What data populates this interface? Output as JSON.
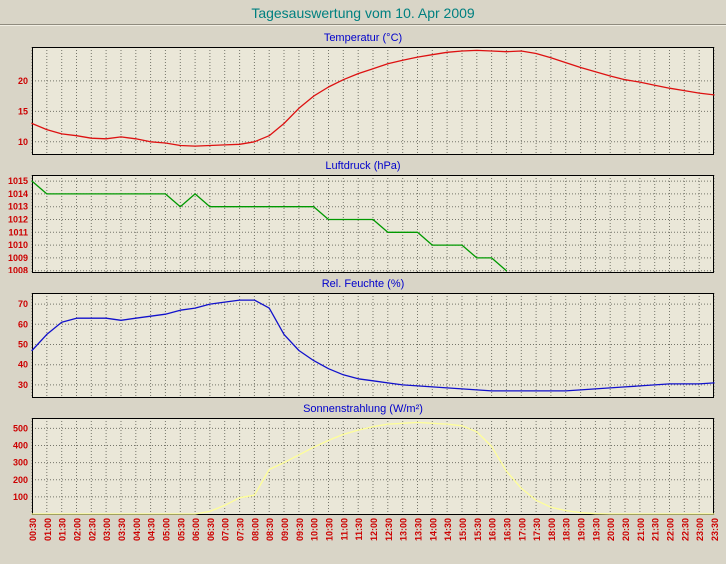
{
  "page_title": "Tagesauswertung vom 10. Apr 2009",
  "colors": {
    "background": "#d9d5c7",
    "plot_bg": "#eae7d8",
    "grid": "#75756a",
    "frame": "#000000",
    "main_title": "#008080",
    "chart_title": "#0000cc",
    "axis_label": "#cc0000",
    "temperature_line": "#dd1111",
    "pressure_line": "#009900",
    "humidity_line": "#1111cc",
    "radiation_line": "#ffff99"
  },
  "time_labels": [
    "00:30",
    "01:00",
    "01:30",
    "02:00",
    "02:30",
    "03:00",
    "03:30",
    "04:00",
    "04:30",
    "05:00",
    "05:30",
    "06:00",
    "06:30",
    "07:00",
    "07:30",
    "08:00",
    "08:30",
    "09:00",
    "09:30",
    "10:00",
    "10:30",
    "11:00",
    "11:30",
    "12:00",
    "12:30",
    "13:00",
    "13:30",
    "14:00",
    "14:30",
    "15:00",
    "15:30",
    "16:00",
    "16:30",
    "17:00",
    "17:30",
    "18:00",
    "18:30",
    "19:00",
    "19:30",
    "20:00",
    "20:30",
    "21:00",
    "21:30",
    "22:00",
    "22:30",
    "23:00",
    "23:30"
  ],
  "chart_data": [
    {
      "id": "temperatur",
      "type": "line",
      "title": "Temperatur (°C)",
      "color": "#dd1111",
      "ylim": [
        8,
        25.4
      ],
      "yticks": [
        10,
        15,
        20
      ],
      "legend": "none",
      "grid": "dotted",
      "values": [
        13,
        12,
        11.3,
        11,
        10.6,
        10.5,
        10.8,
        10.5,
        10,
        9.8,
        9.4,
        9.3,
        9.4,
        9.5,
        9.6,
        10,
        11,
        13,
        15.5,
        17.5,
        19,
        20.2,
        21.2,
        22,
        22.8,
        23.4,
        23.9,
        24.3,
        24.7,
        24.9,
        25,
        24.9,
        24.8,
        24.9,
        24.5,
        23.8,
        23,
        22.2,
        21.5,
        20.8,
        20.2,
        19.8,
        19.3,
        18.8,
        18.4,
        18,
        17.7
      ]
    },
    {
      "id": "luftdruck",
      "type": "line",
      "title": "Luftdruck (hPa)",
      "color": "#009900",
      "ylim": [
        1007.9,
        1015.4
      ],
      "yticks": [
        1008,
        1009,
        1010,
        1011,
        1012,
        1013,
        1014,
        1015
      ],
      "legend": "none",
      "grid": "dotted",
      "values": [
        1015,
        1014,
        1014,
        1014,
        1014,
        1014,
        1014,
        1014,
        1014,
        1014,
        1013,
        1014,
        1013,
        1013,
        1013,
        1013,
        1013,
        1013,
        1013,
        1013,
        1012,
        1012,
        1012,
        1012,
        1011,
        1011,
        1011,
        1010,
        1010,
        1010,
        1009,
        1009,
        1008
      ]
    },
    {
      "id": "feuchte",
      "type": "line",
      "title": "Rel. Feuchte (%)",
      "color": "#1111cc",
      "ylim": [
        24,
        75
      ],
      "yticks": [
        30,
        40,
        50,
        60,
        70
      ],
      "legend": "none",
      "grid": "dotted",
      "values": [
        47,
        55,
        61,
        63,
        63,
        63,
        62,
        63,
        64,
        65,
        67,
        68,
        70,
        71,
        72,
        72,
        68,
        55,
        47,
        42,
        38,
        35,
        33,
        32,
        31,
        30,
        29.5,
        29,
        28.5,
        28,
        27.5,
        27,
        27,
        27,
        27,
        27,
        27,
        27.5,
        28,
        28.5,
        29,
        29.5,
        30,
        30.5,
        30.5,
        30.5,
        31
      ]
    },
    {
      "id": "sonnenstrahlung",
      "type": "line",
      "title": "Sonnenstrahlung (W/m²)",
      "color": "#ffff99",
      "ylim": [
        0,
        555
      ],
      "yticks": [
        100,
        200,
        300,
        400,
        500
      ],
      "legend": "none",
      "grid": "dotted",
      "values": [
        0,
        0,
        0,
        0,
        0,
        0,
        0,
        0,
        0,
        0,
        0,
        0,
        15,
        50,
        95,
        110,
        260,
        300,
        345,
        390,
        430,
        465,
        490,
        510,
        525,
        530,
        535,
        530,
        525,
        515,
        480,
        395,
        250,
        150,
        80,
        40,
        20,
        8,
        2,
        0,
        0,
        0,
        0,
        0,
        0,
        0,
        0
      ]
    }
  ]
}
